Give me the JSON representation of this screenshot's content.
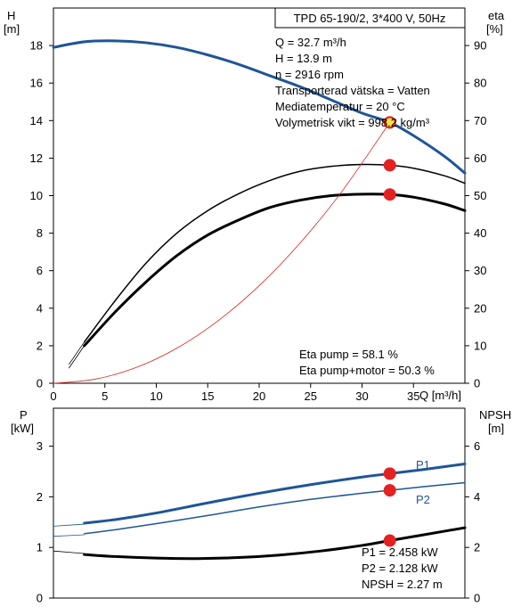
{
  "chart_data": [
    {
      "type": "line",
      "panel": "head-efficiency",
      "title": "TPD 65-190/2, 3*400 V, 50Hz",
      "left_axis": {
        "label": "H",
        "unit": "[m]",
        "ylim": [
          0,
          20
        ],
        "ticks": [
          0,
          2,
          4,
          6,
          8,
          10,
          12,
          14,
          16,
          18
        ]
      },
      "right_axis": {
        "label": "eta",
        "unit": "[%]",
        "ylim": [
          0,
          100
        ],
        "ticks": [
          0,
          10,
          20,
          30,
          40,
          50,
          60,
          70,
          80,
          90
        ]
      },
      "x_axis": {
        "label": "Q [m³/h]",
        "xlim": [
          0,
          40
        ],
        "ticks": [
          0,
          5,
          10,
          15,
          20,
          25,
          30,
          35
        ]
      },
      "grid": false,
      "info_lines": [
        "Q = 32.7 m³/h",
        "H = 13.9 m",
        "n = 2916 rpm",
        "Transporterad vätska = Vatten",
        "Mediatemperatur = 20 °C",
        "Volymetrisk vikt = 998.2 kg/m³"
      ],
      "eta_lines": [
        "Eta pump = 58.1 %",
        "Eta pump+motor = 50.3 %"
      ],
      "series": [
        {
          "id": "head",
          "axis": "left",
          "color": "#1f5597",
          "width": 3,
          "x": [
            0,
            3,
            6,
            9,
            12,
            15,
            18,
            21,
            24,
            27,
            30,
            32.7,
            35,
            38,
            40
          ],
          "y": [
            17.9,
            18.2,
            18.25,
            18.15,
            17.9,
            17.5,
            17.0,
            16.4,
            15.8,
            15.1,
            14.4,
            13.9,
            13.2,
            12.1,
            11.2
          ],
          "ext_x": [
            0,
            3
          ],
          "ext_y": [
            17.9,
            18.15
          ]
        },
        {
          "id": "eta-pump",
          "axis": "right",
          "color": "#000000",
          "width": 1.5,
          "x": [
            3,
            6,
            9,
            12,
            15,
            18,
            21,
            24,
            27,
            30,
            32.7,
            35,
            38,
            40
          ],
          "y": [
            11,
            22,
            32,
            40,
            46,
            50.5,
            54,
            56.5,
            57.8,
            58.3,
            58.1,
            57.3,
            55.3,
            53.3
          ],
          "ext_x": [
            1.5,
            3
          ],
          "ext_y": [
            5,
            11
          ]
        },
        {
          "id": "eta-pump-motor",
          "axis": "right",
          "color": "#000000",
          "width": 3,
          "x": [
            3,
            6,
            9,
            12,
            15,
            18,
            21,
            24,
            27,
            30,
            32.7,
            35,
            38,
            40
          ],
          "y": [
            10,
            19,
            27,
            34,
            39.5,
            43.5,
            46.8,
            48.8,
            50.0,
            50.4,
            50.3,
            49.6,
            47.8,
            46.0
          ],
          "ext_x": [
            1.5,
            3
          ],
          "ext_y": [
            4,
            10
          ]
        },
        {
          "id": "system-curve",
          "axis": "left",
          "color": "#e02020",
          "width": 0.8,
          "x": [
            0,
            4,
            8,
            12,
            16,
            20,
            24,
            28,
            32.7
          ],
          "y": [
            0,
            0.21,
            0.83,
            1.87,
            3.33,
            5.2,
            7.49,
            10.19,
            13.9
          ]
        }
      ],
      "markers": [
        {
          "id": "duty-point",
          "x": 32.7,
          "y": 13.9,
          "axis": "left",
          "fill": "#ffe23a",
          "stroke": "#d92020"
        },
        {
          "id": "eta-pump-point",
          "x": 32.7,
          "y": 58.1,
          "axis": "right",
          "fill": "#e52222",
          "stroke": "#e52222"
        },
        {
          "id": "eta-pump-motor-point",
          "x": 32.7,
          "y": 50.3,
          "axis": "right",
          "fill": "#e52222",
          "stroke": "#e52222"
        }
      ]
    },
    {
      "type": "line",
      "panel": "power-npsh",
      "left_axis": {
        "label": "P",
        "unit": "[kW]",
        "ylim": [
          0,
          3.75
        ],
        "ticks": [
          0,
          1,
          2,
          3
        ]
      },
      "right_axis": {
        "label": "NPSH",
        "unit": "[m]",
        "ylim": [
          0,
          7.5
        ],
        "ticks": [
          0,
          2,
          4,
          6
        ]
      },
      "x_axis": {
        "xlim": [
          0,
          40
        ]
      },
      "grid": false,
      "values_lines": [
        "P1 = 2.458 kW",
        "P2 = 2.128 kW",
        "NPSH = 2.27 m"
      ],
      "series": [
        {
          "id": "P1",
          "name": "P1",
          "axis": "left",
          "color": "#1f5597",
          "width": 3,
          "x": [
            3,
            6,
            10,
            15,
            20,
            25,
            30,
            32.7,
            36,
            40
          ],
          "y": [
            1.48,
            1.55,
            1.68,
            1.88,
            2.07,
            2.24,
            2.39,
            2.458,
            2.54,
            2.65
          ],
          "ext_x": [
            0,
            3
          ],
          "ext_y": [
            1.42,
            1.46
          ]
        },
        {
          "id": "P2",
          "name": "P2",
          "axis": "left",
          "color": "#1f5597",
          "width": 1.5,
          "x": [
            3,
            6,
            10,
            15,
            20,
            25,
            30,
            32.7,
            36,
            40
          ],
          "y": [
            1.27,
            1.35,
            1.47,
            1.63,
            1.8,
            1.95,
            2.07,
            2.128,
            2.2,
            2.28
          ],
          "ext_x": [
            0,
            3
          ],
          "ext_y": [
            1.22,
            1.25
          ]
        },
        {
          "id": "NPSH",
          "axis": "right",
          "color": "#000000",
          "width": 3,
          "x": [
            3,
            6,
            10,
            14,
            18,
            22,
            26,
            30,
            32.7,
            36,
            40
          ],
          "y": [
            1.72,
            1.64,
            1.58,
            1.56,
            1.6,
            1.7,
            1.86,
            2.08,
            2.27,
            2.5,
            2.78
          ],
          "ext_x": [
            0,
            3
          ],
          "ext_y": [
            1.86,
            1.76
          ]
        }
      ],
      "markers": [
        {
          "id": "P1-point",
          "x": 32.7,
          "y": 2.458,
          "axis": "left",
          "fill": "#e52222",
          "stroke": "#e52222"
        },
        {
          "id": "P2-point",
          "x": 32.7,
          "y": 2.128,
          "axis": "left",
          "fill": "#e52222",
          "stroke": "#e52222"
        },
        {
          "id": "NPSH-point",
          "x": 32.7,
          "y": 2.27,
          "axis": "right",
          "fill": "#e52222",
          "stroke": "#e52222"
        }
      ]
    }
  ]
}
